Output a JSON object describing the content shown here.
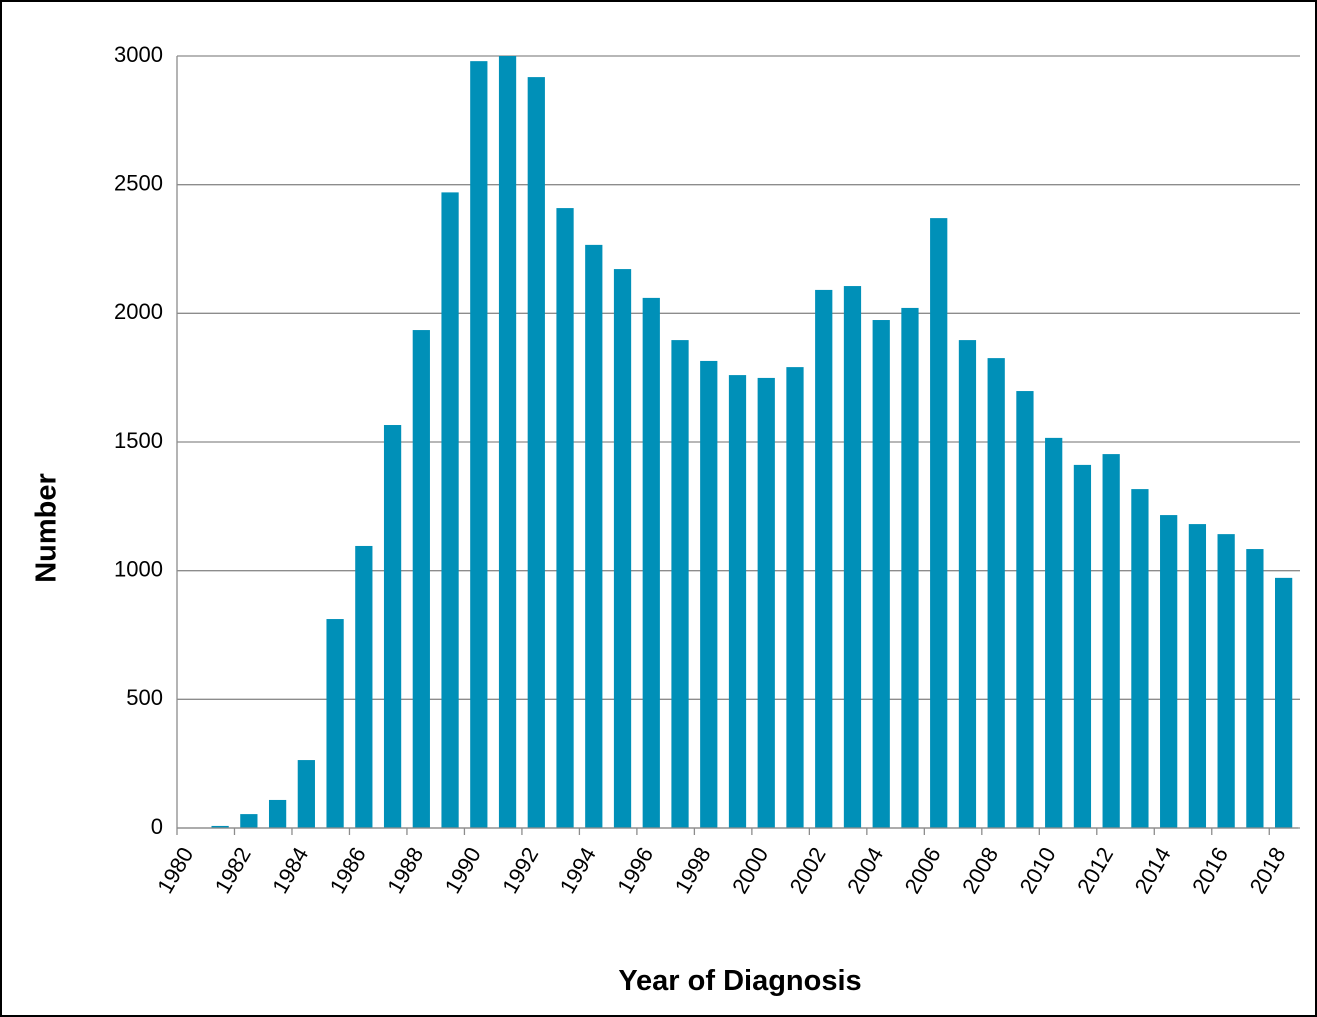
{
  "chart_data": {
    "type": "bar",
    "xlabel": "Year of Diagnosis",
    "ylabel": "Number",
    "categories": [
      "1980",
      null,
      "1982",
      null,
      "1984",
      null,
      "1986",
      null,
      "1988",
      null,
      "1990",
      null,
      "1992",
      null,
      "1994",
      null,
      "1996",
      null,
      "1998",
      null,
      "2000",
      null,
      "2002",
      null,
      "2004",
      null,
      "2006",
      null,
      "2008",
      null,
      "2010",
      null,
      "2012",
      null,
      "2014",
      null,
      "2016",
      null,
      "2018"
    ],
    "values": [
      0,
      8,
      54,
      109,
      264,
      812,
      1096,
      1566,
      1935,
      2470,
      2980,
      3000,
      2918,
      2409,
      2266,
      2172,
      2060,
      1896,
      1815,
      1760,
      1749,
      1791,
      2091,
      2106,
      1974,
      2021,
      2370,
      1896,
      1826,
      1698,
      1516,
      1411,
      1453,
      1317,
      1216,
      1181,
      1142,
      1084,
      972
    ],
    "color": "#0090b8",
    "ylim": [
      0,
      3000
    ],
    "yticks": [
      0,
      500,
      1000,
      1500,
      2000,
      2500,
      3000
    ],
    "grid": true
  }
}
